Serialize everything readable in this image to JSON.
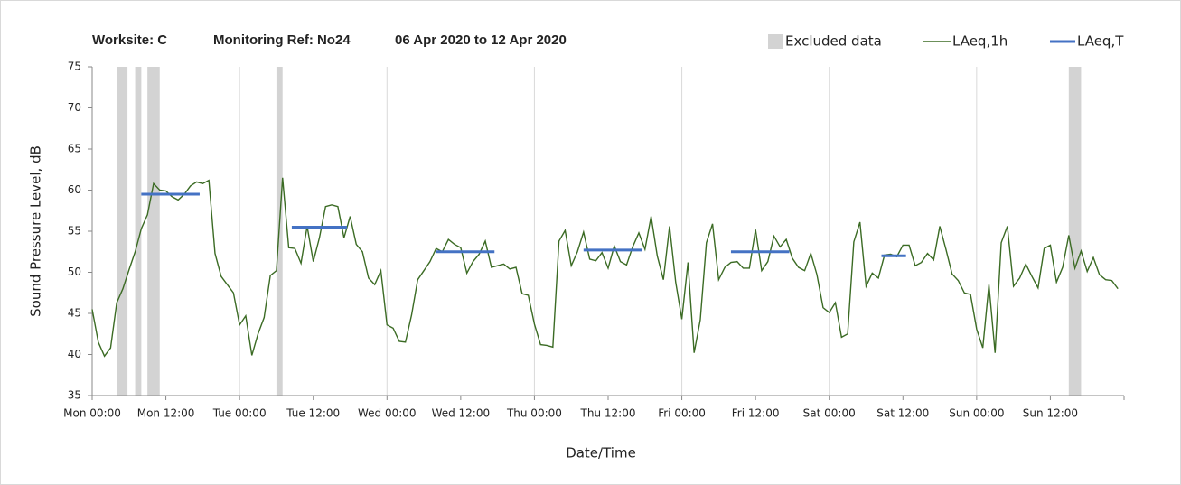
{
  "chart_data": {
    "type": "line",
    "title": [
      "Worksite: C",
      "Monitoring Ref: No24",
      "06 Apr 2020 to 12 Apr 2020"
    ],
    "ylabel": "Sound Pressure Level, dB",
    "xlabel": "Date/Time",
    "xlim": [
      0,
      168
    ],
    "ylim": [
      35,
      75
    ],
    "yticks": [
      35,
      40,
      45,
      50,
      55,
      60,
      65,
      70,
      75
    ],
    "xticks": [
      {
        "value": 0,
        "label": "Mon 00:00"
      },
      {
        "value": 12,
        "label": "Mon 12:00"
      },
      {
        "value": 24,
        "label": "Tue 00:00"
      },
      {
        "value": 36,
        "label": "Tue 12:00"
      },
      {
        "value": 48,
        "label": "Wed 00:00"
      },
      {
        "value": 60,
        "label": "Wed 12:00"
      },
      {
        "value": 72,
        "label": "Thu 00:00"
      },
      {
        "value": 84,
        "label": "Thu 12:00"
      },
      {
        "value": 96,
        "label": "Fri 00:00"
      },
      {
        "value": 108,
        "label": "Fri 12:00"
      },
      {
        "value": 120,
        "label": "Sat 00:00"
      },
      {
        "value": 132,
        "label": "Sat 12:00"
      },
      {
        "value": 144,
        "label": "Sun 00:00"
      },
      {
        "value": 156,
        "label": "Sun 12:00"
      }
    ],
    "x": [
      0,
      1,
      2,
      3,
      4,
      5,
      6,
      7,
      8,
      9,
      10,
      11,
      12,
      13,
      14,
      15,
      16,
      17,
      18,
      19,
      20,
      21,
      22,
      23,
      24,
      25,
      26,
      27,
      28,
      29,
      30,
      31,
      32,
      33,
      34,
      35,
      36,
      37,
      38,
      39,
      40,
      41,
      42,
      43,
      44,
      45,
      46,
      47,
      48,
      49,
      50,
      51,
      52,
      53,
      54,
      55,
      56,
      57,
      58,
      59,
      60,
      61,
      62,
      63,
      64,
      65,
      66,
      67,
      68,
      69,
      70,
      71,
      72,
      73,
      74,
      75,
      76,
      77,
      78,
      79,
      80,
      81,
      82,
      83,
      84,
      85,
      86,
      87,
      88,
      89,
      90,
      91,
      92,
      93,
      94,
      95,
      96,
      97,
      98,
      99,
      100,
      101,
      102,
      103,
      104,
      105,
      106,
      107,
      108,
      109,
      110,
      111,
      112,
      113,
      114,
      115,
      116,
      117,
      118,
      119,
      120,
      121,
      122,
      123,
      124,
      125,
      126,
      127,
      128,
      129,
      130,
      131,
      132,
      133,
      134,
      135,
      136,
      137,
      138,
      139,
      140,
      141,
      142,
      143,
      144,
      145,
      146,
      147,
      148,
      149,
      150,
      151,
      152,
      153,
      154,
      155,
      156,
      157,
      158,
      159,
      160,
      161,
      162,
      163,
      164,
      165,
      166,
      167
    ],
    "series": [
      {
        "name": "LAeq,1h",
        "color": "#3b6b24",
        "values": [
          45.5,
          41.5,
          39.8,
          40.8,
          46.3,
          48,
          50.3,
          52.5,
          55.3,
          57,
          60.8,
          60,
          59.9,
          59.2,
          58.8,
          59.5,
          60.5,
          61,
          60.8,
          61.2,
          52.3,
          49.5,
          48.5,
          47.5,
          43.6,
          44.7,
          39.9,
          42.5,
          44.5,
          49.6,
          50.2,
          61.5,
          53,
          52.9,
          51.1,
          55.6,
          51.3,
          54.2,
          58,
          58.2,
          58,
          54.2,
          56.8,
          53.4,
          52.5,
          49.3,
          48.5,
          50.2,
          43.6,
          43.2,
          41.6,
          41.5,
          44.8,
          49.1,
          50.2,
          51.3,
          52.9,
          52.5,
          54,
          53.4,
          53,
          49.9,
          51.3,
          52.2,
          53.8,
          50.6,
          50.8,
          51,
          50.4,
          50.6,
          47.4,
          47.2,
          43.7,
          41.2,
          41.1,
          40.9,
          53.8,
          55.1,
          50.8,
          52.5,
          54.9,
          51.6,
          51.4,
          52.4,
          50.5,
          53.2,
          51.3,
          50.9,
          53.1,
          54.8,
          52.8,
          56.8,
          52,
          49.1,
          55.6,
          48.8,
          44.3,
          51.2,
          40.2,
          44.2,
          53.6,
          55.9,
          49.1,
          50.6,
          51.2,
          51.3,
          50.5,
          50.5,
          55.2,
          50.2,
          51.3,
          54.4,
          53.1,
          54,
          51.7,
          50.6,
          50.2,
          52.3,
          49.7,
          45.7,
          45.1,
          46.3,
          42.1,
          42.5,
          53.7,
          56.1,
          48.3,
          49.9,
          49.3,
          52.1,
          52.2,
          51.9,
          53.3,
          53.3,
          50.8,
          51.2,
          52.3,
          51.5,
          55.6,
          52.8,
          49.8,
          49,
          47.5,
          47.3,
          43.1,
          40.8,
          48.5,
          40.2,
          53.6,
          55.6,
          48.3,
          49.3,
          51,
          49.5,
          48.1,
          52.9,
          53.3,
          48.8,
          50.6,
          54.5,
          50.5,
          52.6,
          50.1,
          51.8,
          49.7,
          49.1,
          49,
          48
        ]
      }
    ],
    "periods": {
      "name": "LAeq,T",
      "color": "#4472c4",
      "start": [
        8,
        32.5,
        56,
        80,
        104,
        128.5
      ],
      "end": [
        17.5,
        41.5,
        65.5,
        89.5,
        113.5,
        132.5
      ],
      "values": [
        59.5,
        55.5,
        52.5,
        52.7,
        52.5,
        52
      ]
    },
    "excluded": {
      "name": "Excluded data",
      "color": "#d3d3d3",
      "ranges": [
        [
          4,
          5.75
        ],
        [
          7,
          8
        ],
        [
          9,
          11
        ],
        [
          30,
          31
        ],
        [
          159,
          161
        ]
      ]
    },
    "grid": true
  }
}
